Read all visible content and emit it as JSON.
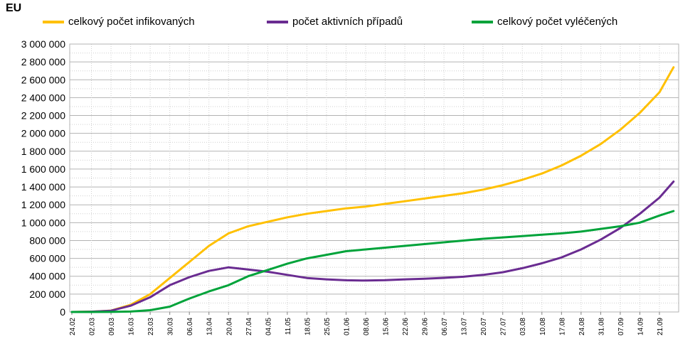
{
  "chart_data": {
    "type": "line",
    "title": "EU",
    "xlabel": "",
    "ylabel": "",
    "ylim": [
      0,
      3000000
    ],
    "yticks": [
      0,
      200000,
      400000,
      600000,
      800000,
      1000000,
      1200000,
      1400000,
      1600000,
      1800000,
      2000000,
      2200000,
      2400000,
      2600000,
      2800000,
      3000000
    ],
    "ytick_labels": [
      "0",
      "200 000",
      "400 000",
      "600 000",
      "800 000",
      "1 000 000",
      "1 200 000",
      "1 400 000",
      "1 600 000",
      "1 800 000",
      "2 000 000",
      "2 200 000",
      "2 400 000",
      "2 600 000",
      "2 800 000",
      "3 000 000"
    ],
    "xtick_labels": [
      "24.02",
      "02.03",
      "09.03",
      "16.03",
      "23.03",
      "30.03",
      "06.04",
      "13.04",
      "20.04",
      "27.04",
      "04.05",
      "11.05",
      "18.05",
      "25.05",
      "01.06",
      "08.06",
      "15.06",
      "22.06",
      "29.06",
      "06.07",
      "13.07",
      "20.07",
      "27.07",
      "03.08",
      "10.08",
      "17.08",
      "24.08",
      "31.08",
      "07.09",
      "14.09",
      "21.09"
    ],
    "grid": true,
    "legend_position": "top",
    "x": [
      "24.02",
      "02.03",
      "09.03",
      "16.03",
      "23.03",
      "30.03",
      "06.04",
      "13.04",
      "20.04",
      "27.04",
      "04.05",
      "11.05",
      "18.05",
      "25.05",
      "01.06",
      "08.06",
      "15.06",
      "22.06",
      "29.06",
      "06.07",
      "13.07",
      "20.07",
      "27.07",
      "03.08",
      "10.08",
      "17.08",
      "24.08",
      "31.08",
      "07.09",
      "14.09",
      "21.09",
      "26.09"
    ],
    "series": [
      {
        "name": "celkový počet infikovaných",
        "color": "#FFC000",
        "values": [
          0,
          3000,
          15000,
          80000,
          200000,
          380000,
          560000,
          740000,
          880000,
          960000,
          1010000,
          1060000,
          1100000,
          1130000,
          1160000,
          1180000,
          1210000,
          1240000,
          1270000,
          1300000,
          1330000,
          1370000,
          1420000,
          1480000,
          1550000,
          1640000,
          1750000,
          1880000,
          2040000,
          2230000,
          2460000,
          2740000
        ]
      },
      {
        "name": "počet aktivních případů",
        "color": "#6A2C91",
        "values": [
          0,
          3000,
          14000,
          70000,
          165000,
          300000,
          390000,
          460000,
          500000,
          475000,
          450000,
          415000,
          380000,
          365000,
          355000,
          352000,
          356000,
          365000,
          372000,
          382000,
          395000,
          415000,
          445000,
          490000,
          545000,
          610000,
          700000,
          810000,
          940000,
          1100000,
          1280000,
          1460000
        ]
      },
      {
        "name": "celkový počet vyléčených",
        "color": "#00A33A",
        "values": [
          0,
          0,
          1000,
          5000,
          20000,
          60000,
          150000,
          230000,
          300000,
          400000,
          470000,
          540000,
          600000,
          640000,
          680000,
          700000,
          720000,
          740000,
          760000,
          780000,
          800000,
          820000,
          835000,
          850000,
          865000,
          880000,
          900000,
          930000,
          960000,
          1000000,
          1080000,
          1130000
        ]
      }
    ]
  }
}
